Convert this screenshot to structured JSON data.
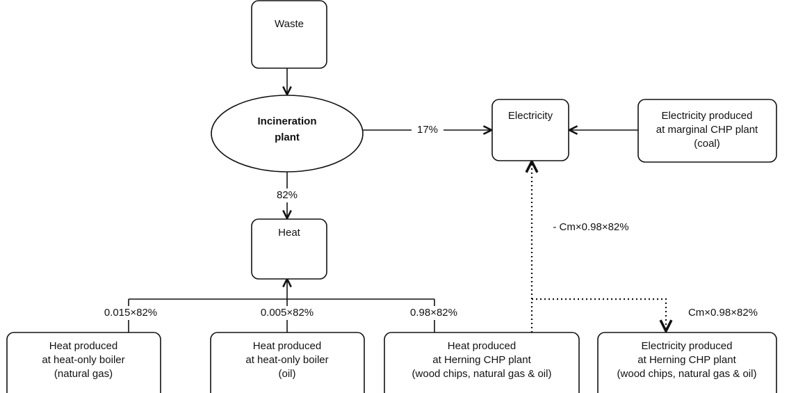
{
  "nodes": [
    {
      "lines": [
        "Waste"
      ]
    },
    {
      "lines": [
        "Incineration",
        "plant"
      ]
    },
    {
      "lines": [
        "Heat"
      ]
    },
    {
      "lines": [
        "Electricity"
      ]
    },
    {
      "lines": [
        "Electricity produced",
        "at marginal CHP plant",
        "(coal)"
      ]
    },
    {
      "lines": [
        "Heat produced",
        "at heat-only boiler",
        "(natural gas)"
      ]
    },
    {
      "lines": [
        "Heat produced",
        "at heat-only boiler",
        "(oil)"
      ]
    },
    {
      "lines": [
        "Heat produced",
        "at Herning CHP plant",
        "(wood chips, natural gas & oil)"
      ]
    },
    {
      "lines": [
        "Electricity produced",
        "at Herning CHP plant",
        "(wood chips, natural gas & oil)"
      ]
    }
  ],
  "edges": [
    {
      "label": "17%"
    },
    {
      "label": "82%"
    },
    {
      "label": "0.015×82%"
    },
    {
      "label": "0.005×82%"
    },
    {
      "label": "0.98×82%"
    },
    {
      "label": "- Cm×0.98×82%"
    },
    {
      "label": "Cm×0.98×82%"
    }
  ]
}
